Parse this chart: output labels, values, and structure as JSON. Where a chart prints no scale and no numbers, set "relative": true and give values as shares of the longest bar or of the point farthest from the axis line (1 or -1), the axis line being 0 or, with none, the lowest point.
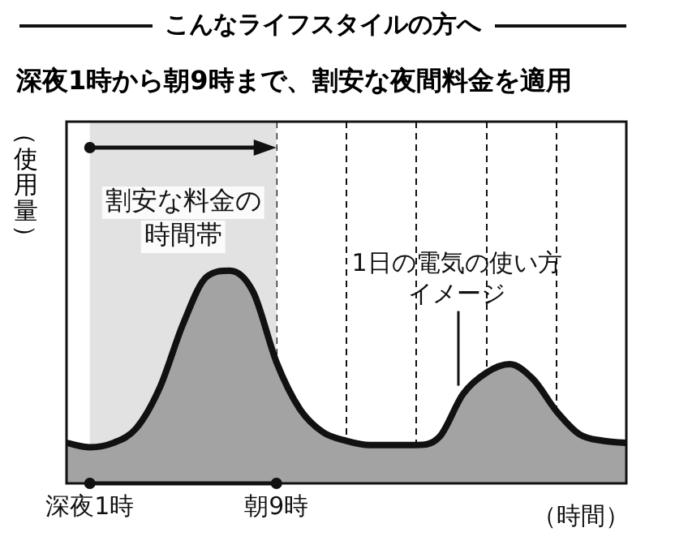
{
  "chart_data": {
    "type": "area",
    "title": "こんなライフスタイルの方へ",
    "subtitle": "深夜1時から朝9時まで、割安な夜間料金を適用",
    "xlabel": "（時間）",
    "ylabel": "（使用量）",
    "relative": true,
    "legend": false,
    "grid": "x",
    "tick_labels": "x",
    "marker": "none",
    "categories": [
      null,
      "深夜1時",
      null,
      null,
      null,
      null,
      null,
      null,
      null,
      "朝9時",
      null,
      null,
      null,
      null,
      null,
      null,
      null,
      null,
      null,
      null,
      null,
      null,
      null,
      null,
      null
    ],
    "series": [
      {
        "color": "#a3a3a3",
        "values": [
          0.19,
          0.17,
          0.19,
          0.26,
          0.45,
          0.75,
          0.97,
          1,
          0.9,
          0.57,
          0.35,
          0.24,
          0.2,
          0.18,
          0.18,
          0.18,
          0.22,
          0.42,
          0.52,
          0.56,
          0.49,
          0.34,
          0.23,
          0.2,
          0.19
        ]
      }
    ],
    "bands": [
      {
        "axis": "x",
        "from": "深夜1時",
        "to": "朝9時",
        "label": "割安な料金の時間帯",
        "color": "#e2e2e2"
      }
    ],
    "annotations": [
      "1日の電気の使い方イメージ"
    ]
  }
}
